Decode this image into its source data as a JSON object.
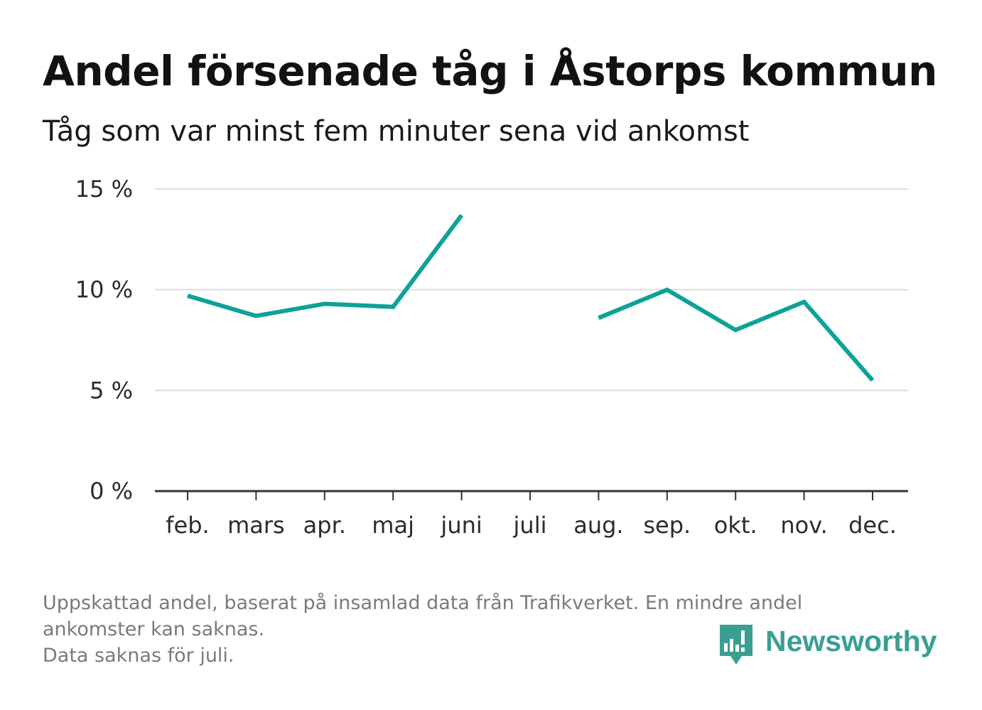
{
  "header": {
    "title": "Andel försenade tåg i Åstorps kommun",
    "subtitle": "Tåg som var minst fem minuter sena vid ankomst"
  },
  "chart_data": {
    "type": "line",
    "categories": [
      "feb.",
      "mars",
      "apr.",
      "maj",
      "juni",
      "juli",
      "aug.",
      "sep.",
      "okt.",
      "nov.",
      "dec."
    ],
    "series": [
      {
        "values": [
          9.7,
          8.7,
          9.3,
          9.15,
          13.7,
          null,
          8.6,
          10.0,
          8.0,
          9.4,
          5.5
        ]
      }
    ],
    "ylabel": "",
    "xlabel": "",
    "ylim": [
      0,
      15
    ],
    "yticks": [
      0,
      5,
      10,
      15
    ],
    "ytick_labels": [
      "0 %",
      "5 %",
      "10 %",
      "15 %"
    ],
    "grid": true,
    "line_color": "#0ca298",
    "gridline_color": "#dddddd",
    "axis_color": "#333333"
  },
  "footnote": {
    "lines": [
      "Uppskattad andel, baserat på insamlad data från Trafikverket. En mindre andel",
      "ankomster kan saknas.",
      "Data saknas för juli."
    ]
  },
  "brand": {
    "name": "Newsworthy",
    "icon": "bar-chart-speech-bubble-icon",
    "color": "#3a9e93"
  }
}
